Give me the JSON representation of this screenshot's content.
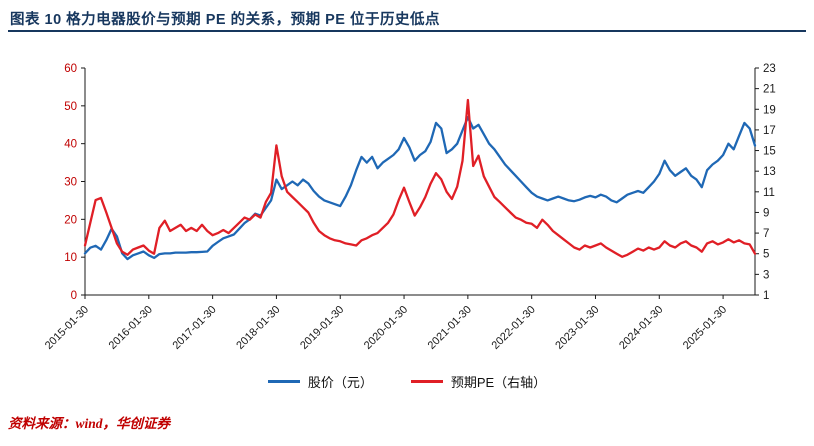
{
  "header": {
    "title": "图表 10  格力电器股价与预期 PE 的关系，预期 PE 位于历史低点"
  },
  "footer": {
    "source": "资料来源：wind，华创证券"
  },
  "colors": {
    "title": "#17375e",
    "rule": "#17375e",
    "axis": "#1a1a1a",
    "left_axis_label": "#c00000",
    "right_axis_label": "#1a1a1a",
    "x_axis_label": "#1a1a1a",
    "price_line": "#1f68b5",
    "pe_line": "#e01f26",
    "source_text": "#c00000"
  },
  "chart_data": {
    "type": "line",
    "title": "格力电器股价与预期PE",
    "grid": false,
    "legend_position": "bottom",
    "left_axis": {
      "min": 0,
      "max": 60,
      "ticks": [
        0,
        10,
        20,
        30,
        40,
        50,
        60
      ]
    },
    "right_axis": {
      "min": 1,
      "max": 23,
      "ticks": [
        1,
        3,
        5,
        7,
        9,
        11,
        13,
        15,
        17,
        19,
        21,
        23
      ]
    },
    "x_tick_labels": [
      "2015-01-30",
      "2016-01-30",
      "2017-01-30",
      "2018-01-30",
      "2019-01-30",
      "2020-01-30",
      "2021-01-30",
      "2022-01-30",
      "2023-01-30",
      "2024-01-30",
      "2025-01-30"
    ],
    "x_tick_indices": [
      0,
      12,
      24,
      36,
      48,
      60,
      72,
      84,
      96,
      108,
      120
    ],
    "x": [
      "2015-01",
      "2015-02",
      "2015-03",
      "2015-04",
      "2015-05",
      "2015-06",
      "2015-07",
      "2015-08",
      "2015-09",
      "2015-10",
      "2015-11",
      "2015-12",
      "2016-01",
      "2016-02",
      "2016-03",
      "2016-04",
      "2016-05",
      "2016-06",
      "2016-07",
      "2016-08",
      "2016-09",
      "2016-10",
      "2016-11",
      "2016-12",
      "2017-01",
      "2017-02",
      "2017-03",
      "2017-04",
      "2017-05",
      "2017-06",
      "2017-07",
      "2017-08",
      "2017-09",
      "2017-10",
      "2017-11",
      "2017-12",
      "2018-01",
      "2018-02",
      "2018-03",
      "2018-04",
      "2018-05",
      "2018-06",
      "2018-07",
      "2018-08",
      "2018-09",
      "2018-10",
      "2018-11",
      "2018-12",
      "2019-01",
      "2019-02",
      "2019-03",
      "2019-04",
      "2019-05",
      "2019-06",
      "2019-07",
      "2019-08",
      "2019-09",
      "2019-10",
      "2019-11",
      "2019-12",
      "2020-01",
      "2020-02",
      "2020-03",
      "2020-04",
      "2020-05",
      "2020-06",
      "2020-07",
      "2020-08",
      "2020-09",
      "2020-10",
      "2020-11",
      "2020-12",
      "2021-01",
      "2021-02",
      "2021-03",
      "2021-04",
      "2021-05",
      "2021-06",
      "2021-07",
      "2021-08",
      "2021-09",
      "2021-10",
      "2021-11",
      "2021-12",
      "2022-01",
      "2022-02",
      "2022-03",
      "2022-04",
      "2022-05",
      "2022-06",
      "2022-07",
      "2022-08",
      "2022-09",
      "2022-10",
      "2022-11",
      "2022-12",
      "2023-01",
      "2023-02",
      "2023-03",
      "2023-04",
      "2023-05",
      "2023-06",
      "2023-07",
      "2023-08",
      "2023-09",
      "2023-10",
      "2023-11",
      "2023-12",
      "2024-01",
      "2024-02",
      "2024-03",
      "2024-04",
      "2024-05",
      "2024-06",
      "2024-07",
      "2024-08",
      "2024-09",
      "2024-10",
      "2024-11",
      "2024-12",
      "2025-01",
      "2025-02",
      "2025-03",
      "2025-04",
      "2025-05",
      "2025-06",
      "2025-07"
    ],
    "series": [
      {
        "name": "股价（元）",
        "axis": "left",
        "color": "#1f68b5",
        "values": [
          11.0,
          12.5,
          13.0,
          12.0,
          14.5,
          17.5,
          15.5,
          11.0,
          9.5,
          10.5,
          11.0,
          11.5,
          10.5,
          9.8,
          10.8,
          11.0,
          11.0,
          11.2,
          11.2,
          11.2,
          11.3,
          11.3,
          11.4,
          11.5,
          13.0,
          14.0,
          15.0,
          15.5,
          16.0,
          17.5,
          19.0,
          20.0,
          21.5,
          21.0,
          23.0,
          25.0,
          30.5,
          28.0,
          29.0,
          30.0,
          29.0,
          30.5,
          29.5,
          27.5,
          26.0,
          25.0,
          24.5,
          24.0,
          23.5,
          26.0,
          29.0,
          33.0,
          36.5,
          35.0,
          36.5,
          33.5,
          35.0,
          36.0,
          37.0,
          38.5,
          41.5,
          39.0,
          35.5,
          37.0,
          38.0,
          40.5,
          45.5,
          44.0,
          37.5,
          38.5,
          40.0,
          43.5,
          47.0,
          44.0,
          45.0,
          42.5,
          40.0,
          38.5,
          36.5,
          34.5,
          33.0,
          31.5,
          30.0,
          28.5,
          27.0,
          26.0,
          25.5,
          25.0,
          25.5,
          26.0,
          25.5,
          25.0,
          24.8,
          25.2,
          25.8,
          26.2,
          25.8,
          26.5,
          26.0,
          25.0,
          24.5,
          25.5,
          26.5,
          27.0,
          27.5,
          27.0,
          28.5,
          30.0,
          32.0,
          35.5,
          33.0,
          31.5,
          32.5,
          33.5,
          31.5,
          30.5,
          28.5,
          33.0,
          34.5,
          35.5,
          37.0,
          40.0,
          38.5,
          42.0,
          45.5,
          44.0,
          39.5
        ]
      },
      {
        "name": "预期PE（右轴）",
        "axis": "right",
        "color": "#e01f26",
        "values": [
          5.8,
          8.0,
          10.2,
          10.4,
          9.0,
          7.5,
          6.0,
          5.2,
          4.9,
          5.4,
          5.6,
          5.8,
          5.3,
          5.0,
          7.5,
          8.2,
          7.2,
          7.5,
          7.8,
          7.2,
          7.5,
          7.2,
          7.8,
          7.2,
          6.8,
          7.0,
          7.3,
          7.0,
          7.5,
          8.0,
          8.5,
          8.3,
          8.8,
          8.5,
          10.0,
          10.9,
          15.5,
          12.5,
          11.0,
          10.5,
          10.0,
          9.5,
          9.0,
          8.0,
          7.2,
          6.8,
          6.5,
          6.3,
          6.2,
          6.0,
          5.9,
          5.8,
          6.3,
          6.5,
          6.8,
          7.0,
          7.5,
          8.0,
          8.8,
          10.2,
          11.4,
          10.0,
          8.7,
          9.5,
          10.5,
          11.8,
          12.8,
          12.2,
          11.0,
          10.3,
          11.5,
          14.0,
          19.9,
          13.5,
          14.5,
          12.5,
          11.5,
          10.5,
          10.0,
          9.5,
          9.0,
          8.5,
          8.3,
          8.0,
          7.9,
          7.5,
          8.3,
          7.8,
          7.2,
          6.8,
          6.4,
          6.0,
          5.6,
          5.4,
          5.8,
          5.6,
          5.8,
          6.0,
          5.6,
          5.3,
          5.0,
          4.7,
          4.9,
          5.2,
          5.5,
          5.3,
          5.6,
          5.4,
          5.6,
          6.2,
          5.8,
          5.6,
          6.0,
          6.2,
          5.8,
          5.6,
          5.2,
          6.0,
          6.2,
          5.9,
          6.1,
          6.4,
          6.1,
          6.3,
          6.0,
          5.9,
          5.0
        ]
      }
    ]
  }
}
